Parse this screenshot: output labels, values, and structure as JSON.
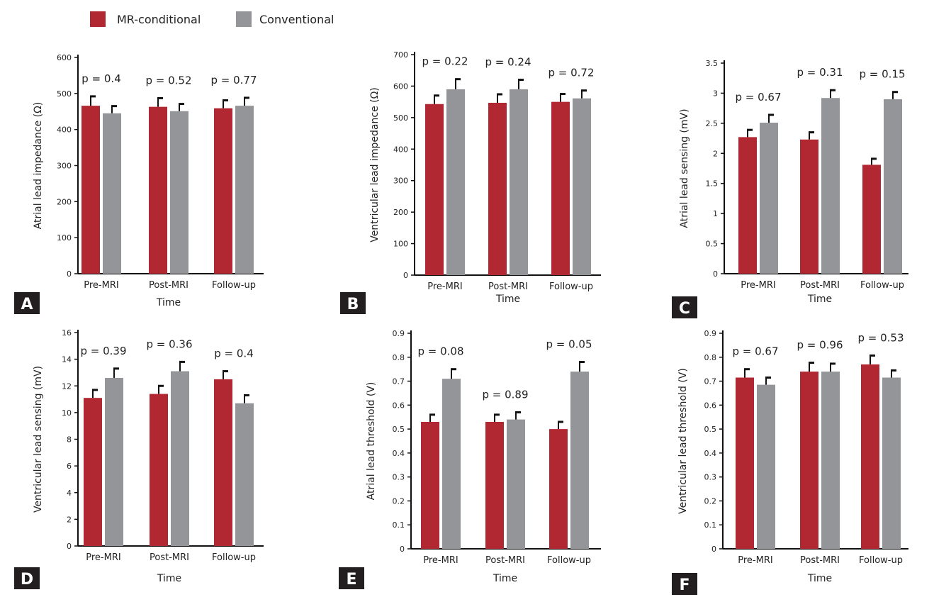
{
  "legend": [
    {
      "label": "MR-conditional",
      "color": "#b22832"
    },
    {
      "label": "Conventional",
      "color": "#939598"
    }
  ],
  "chart_data": [
    {
      "panel": "A",
      "type": "bar",
      "ylabel": "Atrial lead impedance (Ω)",
      "xlabel": "Time",
      "categories": [
        "Pre-MRI",
        "Post-MRI",
        "Follow-up"
      ],
      "ylim": [
        0,
        600
      ],
      "yticks": [
        0,
        100,
        200,
        300,
        400,
        500,
        600
      ],
      "series": [
        {
          "name": "MR-conditional",
          "values": [
            466,
            463,
            459
          ],
          "errors": [
            26,
            24,
            22
          ]
        },
        {
          "name": "Conventional",
          "values": [
            445,
            451,
            466
          ],
          "errors": [
            20,
            20,
            22
          ]
        }
      ],
      "p_values": [
        "p = 0.4",
        "p = 0.52",
        "p = 0.77"
      ]
    },
    {
      "panel": "B",
      "type": "bar",
      "ylabel": "Ventricular lead impedance (Ω)",
      "xlabel": "Time",
      "categories": [
        "Pre-MRI",
        "Post-MRI",
        "Follow-up"
      ],
      "ylim": [
        0,
        700
      ],
      "yticks": [
        0,
        100,
        200,
        300,
        400,
        500,
        600,
        700
      ],
      "series": [
        {
          "name": "MR-conditional",
          "values": [
            543,
            547,
            550
          ],
          "errors": [
            27,
            27,
            25
          ]
        },
        {
          "name": "Conventional",
          "values": [
            590,
            590,
            561
          ],
          "errors": [
            32,
            30,
            25
          ]
        }
      ],
      "p_values": [
        "p = 0.22",
        "p = 0.24",
        "p = 0.72"
      ]
    },
    {
      "panel": "C",
      "type": "bar",
      "ylabel": "Atrial lead sensing (mV)",
      "xlabel": "Time",
      "categories": [
        "Pre-MRI",
        "Post-MRI",
        "Follow-up"
      ],
      "ylim": [
        0,
        3.5
      ],
      "yticks": [
        0,
        0.5,
        1,
        1.5,
        2,
        2.5,
        3,
        3.5
      ],
      "series": [
        {
          "name": "MR-conditional",
          "values": [
            2.27,
            2.23,
            1.81
          ],
          "errors": [
            0.12,
            0.12,
            0.1
          ]
        },
        {
          "name": "Conventional",
          "values": [
            2.51,
            2.92,
            2.9
          ],
          "errors": [
            0.13,
            0.13,
            0.12
          ]
        }
      ],
      "p_values": [
        "p = 0.67",
        "p = 0.31",
        "p = 0.15"
      ]
    },
    {
      "panel": "D",
      "type": "bar",
      "ylabel": "Ventricular lead sensing (mV)",
      "xlabel": "Time",
      "categories": [
        "Pre-MRI",
        "Post-MRI",
        "Follow-up"
      ],
      "ylim": [
        0,
        16
      ],
      "yticks": [
        0,
        2,
        4,
        6,
        8,
        10,
        12,
        14,
        16
      ],
      "series": [
        {
          "name": "MR-conditional",
          "values": [
            11.1,
            11.4,
            12.5
          ],
          "errors": [
            0.6,
            0.6,
            0.6
          ]
        },
        {
          "name": "Conventional",
          "values": [
            12.6,
            13.1,
            10.7
          ],
          "errors": [
            0.7,
            0.7,
            0.6
          ]
        }
      ],
      "p_values": [
        "p = 0.39",
        "p = 0.36",
        "p = 0.4"
      ]
    },
    {
      "panel": "E",
      "type": "bar",
      "ylabel": "Atrial lead threshold (V)",
      "xlabel": "Time",
      "categories": [
        "Pre-MRI",
        "Post-MRI",
        "Follow-up"
      ],
      "ylim": [
        0,
        0.9
      ],
      "yticks": [
        0,
        0.1,
        0.2,
        0.3,
        0.4,
        0.5,
        0.6,
        0.7,
        0.8,
        0.9
      ],
      "series": [
        {
          "name": "MR-conditional",
          "values": [
            0.53,
            0.53,
            0.5
          ],
          "errors": [
            0.03,
            0.03,
            0.03
          ]
        },
        {
          "name": "Conventional",
          "values": [
            0.71,
            0.54,
            0.74
          ],
          "errors": [
            0.04,
            0.03,
            0.04
          ]
        }
      ],
      "p_values": [
        "p = 0.08",
        "p = 0.89",
        "p = 0.05"
      ]
    },
    {
      "panel": "F",
      "type": "bar",
      "ylabel": "Ventricular lead threshold (V)",
      "xlabel": "Time",
      "categories": [
        "Pre-MRI",
        "Post-MRI",
        "Follow-up"
      ],
      "ylim": [
        0,
        0.9
      ],
      "yticks": [
        0,
        0.1,
        0.2,
        0.3,
        0.4,
        0.5,
        0.6,
        0.7,
        0.8,
        0.9
      ],
      "series": [
        {
          "name": "MR-conditional",
          "values": [
            0.715,
            0.74,
            0.77
          ],
          "errors": [
            0.035,
            0.037,
            0.037
          ]
        },
        {
          "name": "Conventional",
          "values": [
            0.685,
            0.74,
            0.715
          ],
          "errors": [
            0.03,
            0.033,
            0.03
          ]
        }
      ],
      "p_values": [
        "p = 0.67",
        "p = 0.96",
        "p = 0.53"
      ]
    }
  ]
}
